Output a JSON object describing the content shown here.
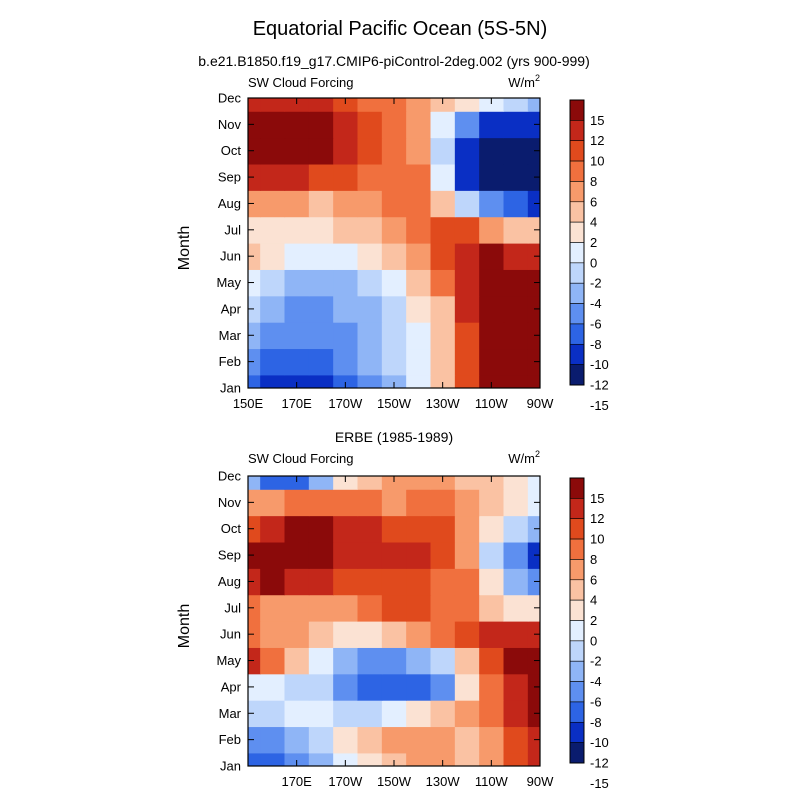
{
  "figure": {
    "title": "Equatorial Pacific Ocean (5S-5N)"
  },
  "colors": {
    "scale": [
      "#0a1c6e",
      "#0a2fc4",
      "#2d64e4",
      "#5e8ff0",
      "#8fb5f6",
      "#bed6fb",
      "#e3efff",
      "#fbe2d3",
      "#fac2a3",
      "#f79a6b",
      "#f0703e",
      "#e04a1d",
      "#c3271a",
      "#8b0a0a"
    ]
  },
  "chart_data": [
    {
      "type": "heatmap",
      "title": "b.e21.B1850.f19_g17.CMIP6-piControl-2deg.002 (yrs 900-999)",
      "left_label": "SW Cloud Forcing",
      "units": "W/m",
      "units_sup": "2",
      "ylabel": "Month",
      "yticks": [
        "Jan",
        "Feb",
        "Mar",
        "Apr",
        "May",
        "Jun",
        "Jul",
        "Aug",
        "Sep",
        "Oct",
        "Nov",
        "Dec"
      ],
      "xticks": [
        "150E",
        "170E",
        "170W",
        "150W",
        "130W",
        "110W",
        "90W"
      ],
      "xlim": [
        150,
        270
      ],
      "colorbar_labels": [
        "15",
        "12",
        "10",
        "8",
        "6",
        "4",
        "2",
        "0",
        "-2",
        "-4",
        "-6",
        "-8",
        "-10",
        "-12",
        "-15"
      ],
      "colorbar_levels": [
        -15,
        -12,
        -10,
        -8,
        -6,
        -4,
        -2,
        0,
        2,
        4,
        6,
        8,
        10,
        12,
        15
      ],
      "grid_lon": [
        150,
        160,
        170,
        180,
        190,
        200,
        210,
        220,
        230,
        240,
        250,
        260,
        270
      ],
      "values": [
        [
          -11,
          -13,
          -14,
          -13,
          -11,
          -9,
          -7,
          -4,
          1,
          7,
          11,
          14,
          16
        ],
        [
          -10,
          -12,
          -12,
          -11,
          -10,
          -8,
          -6,
          -3,
          1,
          7,
          11,
          14,
          16
        ],
        [
          -8,
          -10,
          -10,
          -10,
          -9,
          -7,
          -6,
          -3,
          0,
          7,
          11,
          14,
          16
        ],
        [
          -6,
          -8,
          -9,
          -9,
          -8,
          -7,
          -5,
          -2,
          1,
          8,
          12,
          15,
          16
        ],
        [
          -3,
          -5,
          -7,
          -8,
          -7,
          -6,
          -3,
          0,
          4,
          9,
          13,
          15,
          15
        ],
        [
          0,
          -2,
          -3,
          -4,
          -3,
          -1,
          1,
          3,
          6,
          9,
          10,
          9,
          8
        ],
        [
          -1,
          -1,
          -1,
          -1,
          0,
          1,
          2,
          4,
          6,
          6,
          3,
          1,
          0
        ],
        [
          3,
          3,
          2,
          1,
          2,
          3,
          4,
          4,
          1,
          -5,
          -9,
          -12,
          -13
        ],
        [
          8,
          8,
          8,
          7,
          6,
          5,
          5,
          4,
          -3,
          -13,
          -16,
          -16,
          -16
        ],
        [
          10,
          12,
          13,
          12,
          9,
          6,
          5,
          3,
          -5,
          -14,
          -16,
          -16,
          -16
        ],
        [
          10,
          13,
          13,
          12,
          9,
          6,
          4,
          2,
          -3,
          -10,
          -13,
          -14,
          -14
        ],
        [
          8,
          9,
          9,
          8,
          7,
          5,
          4,
          3,
          1,
          -2,
          -4,
          -6,
          -7
        ]
      ]
    },
    {
      "type": "heatmap",
      "title": "ERBE (1985-1989)",
      "left_label": "SW Cloud Forcing",
      "units": "W/m",
      "units_sup": "2",
      "ylabel": "Month",
      "yticks": [
        "Jan",
        "Feb",
        "Mar",
        "Apr",
        "May",
        "Jun",
        "Jul",
        "Aug",
        "Sep",
        "Oct",
        "Nov",
        "Dec"
      ],
      "xticks": [
        "170E",
        "170W",
        "150W",
        "130W",
        "110W",
        "90W"
      ],
      "xlim": [
        150,
        270
      ],
      "colorbar_labels": [
        "15",
        "12",
        "10",
        "8",
        "6",
        "4",
        "2",
        "0",
        "-2",
        "-4",
        "-6",
        "-8",
        "-10",
        "-12",
        "-15"
      ],
      "colorbar_levels": [
        -15,
        -12,
        -10,
        -8,
        -6,
        -4,
        -2,
        0,
        2,
        4,
        6,
        8,
        10,
        12,
        15
      ],
      "grid_lon": [
        150,
        160,
        170,
        180,
        190,
        200,
        210,
        220,
        230,
        240,
        250,
        260,
        270
      ],
      "values": [
        [
          -12,
          -12,
          -10,
          -8,
          -4,
          -1,
          1,
          2,
          2,
          1,
          3,
          6,
          8
        ],
        [
          -9,
          -10,
          -8,
          -5,
          -1,
          1,
          2,
          3,
          2,
          1,
          2,
          7,
          9
        ],
        [
          -5,
          -5,
          -4,
          -4,
          -6,
          -5,
          -3,
          -1,
          0,
          2,
          4,
          8,
          11
        ],
        [
          -3,
          -4,
          -5,
          -6,
          -10,
          -11,
          -12,
          -12,
          -9,
          -2,
          4,
          9,
          11
        ],
        [
          8,
          4,
          0,
          -3,
          -7,
          -9,
          -10,
          -8,
          -5,
          0,
          6,
          10,
          11
        ],
        [
          4,
          2,
          3,
          1,
          -2,
          -2,
          0,
          2,
          4,
          6,
          8,
          9,
          8
        ],
        [
          4,
          2,
          3,
          3,
          3,
          5,
          6,
          6,
          5,
          4,
          1,
          -1,
          -2
        ],
        [
          9,
          10,
          9,
          8,
          7,
          7,
          6,
          6,
          5,
          4,
          -2,
          -8,
          -10
        ],
        [
          10,
          11,
          12,
          11,
          9,
          8,
          8,
          8,
          7,
          2,
          -5,
          -10,
          -13
        ],
        [
          7,
          8,
          11,
          11,
          9,
          8,
          7,
          7,
          6,
          3,
          -2,
          -6,
          -8
        ],
        [
          2,
          3,
          4,
          5,
          5,
          4,
          3,
          4,
          5,
          3,
          0,
          -2,
          -4
        ],
        [
          -8,
          -12,
          -12,
          -7,
          -2,
          1,
          2,
          3,
          2,
          1,
          1,
          -2,
          -4
        ]
      ]
    }
  ]
}
